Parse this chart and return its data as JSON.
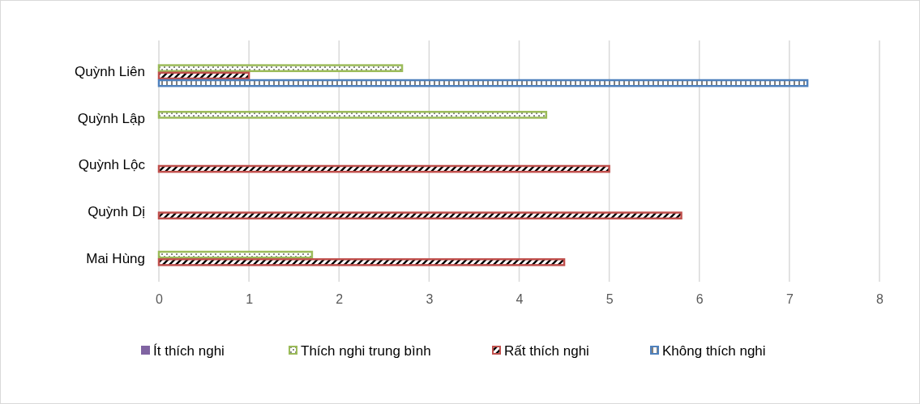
{
  "chart_data": {
    "type": "bar",
    "orientation": "horizontal",
    "categories": [
      "Quỳnh Liên",
      "Quỳnh Lập",
      "Quỳnh Lộc",
      "Quỳnh Dị",
      "Mai Hùng"
    ],
    "series": [
      {
        "name": "Ít thích nghi",
        "color": "#8064a2",
        "values": [
          0,
          0,
          0,
          0,
          0
        ]
      },
      {
        "name": "Thích nghi trung bình",
        "color": "#9bbb59",
        "values": [
          2.7,
          4.3,
          0,
          0,
          1.7
        ]
      },
      {
        "name": "Rất thích nghi",
        "color": "#c0504d",
        "values": [
          1.0,
          0,
          5.0,
          5.8,
          4.5
        ]
      },
      {
        "name": "Không thích nghi",
        "color": "#4f81bd",
        "values": [
          7.2,
          0,
          0,
          0,
          0
        ]
      }
    ],
    "xlim": [
      0,
      8
    ],
    "xticks": [
      0,
      1,
      2,
      3,
      4,
      5,
      6,
      7,
      8
    ],
    "grid": "x",
    "legend": "bottom"
  }
}
